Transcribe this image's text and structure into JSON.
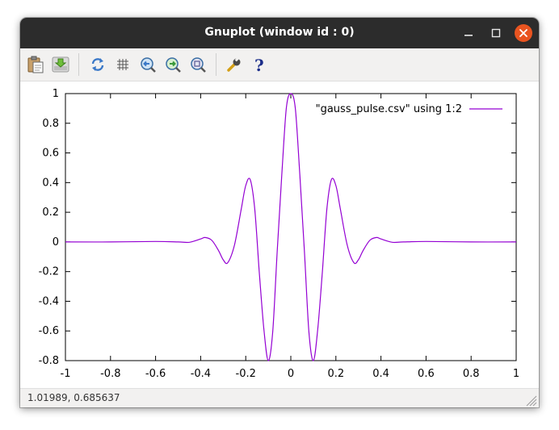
{
  "window": {
    "title": "Gnuplot (window id : 0)"
  },
  "toolbar": {
    "icons": [
      "clipboard-icon",
      "export-icon",
      "replot-icon",
      "grid-icon",
      "zoom-previous-icon",
      "zoom-next-icon",
      "unzoom-icon",
      "settings-wrench-icon",
      "help-icon"
    ]
  },
  "status": {
    "coords": "1.01989,  0.685637"
  },
  "colors": {
    "series": "#9400d3",
    "titlebar": "#2c2c2c",
    "close_button": "#e95420"
  },
  "chart_data": {
    "type": "line",
    "title": "",
    "xlabel": "",
    "ylabel": "",
    "xlim": [
      -1,
      1
    ],
    "ylim": [
      -0.8,
      1
    ],
    "xticks": [
      "-1",
      "-0.8",
      "-0.6",
      "-0.4",
      "-0.2",
      "0",
      "0.2",
      "0.4",
      "0.6",
      "0.8",
      "1"
    ],
    "yticks": [
      "1",
      "0.8",
      "0.6",
      "0.4",
      "0.2",
      "0",
      "-0.2",
      "-0.4",
      "-0.6",
      "-0.8"
    ],
    "grid": false,
    "legend_position": "top-right",
    "series": [
      {
        "name": "\"gauss_pulse.csv\" using 1:2",
        "color": "#9400d3",
        "x": [
          -1,
          -0.8,
          -0.6,
          -0.5,
          -0.45,
          -0.4,
          -0.38,
          -0.35,
          -0.32,
          -0.3,
          -0.28,
          -0.25,
          -0.22,
          -0.2,
          -0.18,
          -0.16,
          -0.14,
          -0.12,
          -0.1,
          -0.08,
          -0.06,
          -0.04,
          -0.02,
          0,
          0.02,
          0.04,
          0.06,
          0.08,
          0.1,
          0.12,
          0.14,
          0.16,
          0.18,
          0.2,
          0.22,
          0.25,
          0.28,
          0.3,
          0.32,
          0.35,
          0.38,
          0.4,
          0.45,
          0.5,
          0.6,
          0.8,
          1
        ],
        "y": [
          0,
          0,
          0.003,
          0,
          -0.002,
          0.02,
          0.03,
          0.01,
          -0.06,
          -0.12,
          -0.14,
          -0.02,
          0.22,
          0.38,
          0.42,
          0.22,
          -0.2,
          -0.58,
          -0.8,
          -0.6,
          -0.05,
          0.45,
          0.9,
          1,
          0.9,
          0.45,
          -0.05,
          -0.6,
          -0.8,
          -0.58,
          -0.2,
          0.22,
          0.42,
          0.38,
          0.22,
          -0.02,
          -0.14,
          -0.12,
          -0.06,
          0.01,
          0.03,
          0.02,
          -0.002,
          0,
          0.003,
          0,
          0
        ]
      }
    ]
  }
}
